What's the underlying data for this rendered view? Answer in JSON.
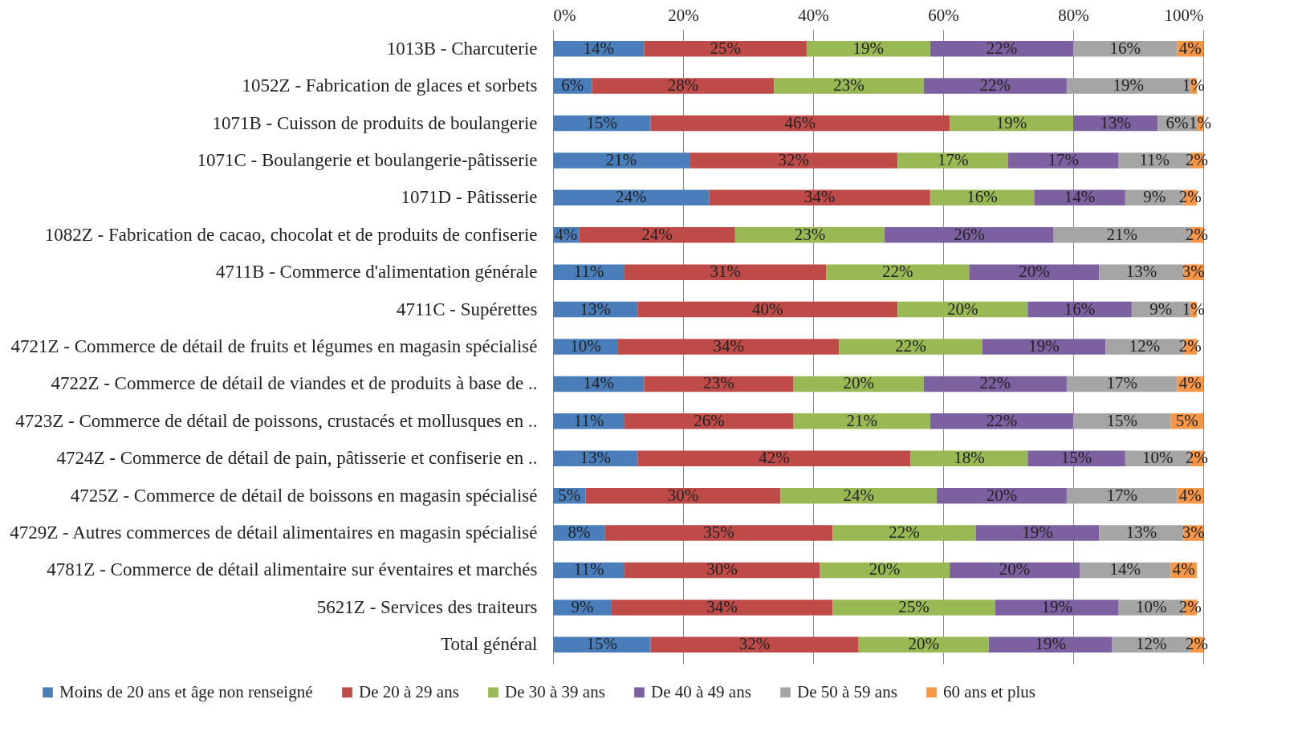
{
  "chart_data": {
    "type": "bar",
    "orientation": "horizontal",
    "stacked": true,
    "categories": [
      "1013B - Charcuterie",
      "1052Z - Fabrication de glaces et sorbets",
      "1071B - Cuisson de produits de boulangerie",
      "1071C - Boulangerie et boulangerie-pâtisserie",
      "1071D - Pâtisserie",
      "1082Z - Fabrication de cacao, chocolat et de produits de confiserie",
      "4711B - Commerce d'alimentation générale",
      "4711C - Supérettes",
      "4721Z - Commerce de détail de fruits et légumes en magasin spécialisé",
      "4722Z - Commerce de détail de viandes et de produits à base de ..",
      "4723Z - Commerce de détail de poissons, crustacés et mollusques en ..",
      "4724Z - Commerce de détail de pain, pâtisserie et confiserie en ..",
      "4725Z - Commerce de détail de boissons en magasin spécialisé",
      "4729Z - Autres commerces de détail alimentaires en magasin spécialisé",
      "4781Z - Commerce de détail alimentaire sur éventaires et marchés",
      "5621Z - Services des traiteurs",
      "Total général"
    ],
    "series": [
      {
        "name": "Moins de 20 ans et âge non renseigné",
        "color": "#4a7ebb",
        "values": [
          14,
          6,
          15,
          21,
          24,
          4,
          11,
          13,
          10,
          14,
          11,
          13,
          5,
          8,
          11,
          9,
          15
        ],
        "value_labels": [
          "14%",
          "6%",
          "15%",
          "21%",
          "24%",
          "4%",
          "11%",
          "13%",
          "10%",
          "14%",
          "11%",
          "13%",
          "5%",
          "8%",
          "11%",
          "9%",
          "15%"
        ]
      },
      {
        "name": "De 20 à 29 ans",
        "color": "#be4b48",
        "values": [
          25,
          28,
          46,
          32,
          34,
          24,
          31,
          40,
          34,
          23,
          26,
          42,
          30,
          35,
          30,
          34,
          32
        ],
        "value_labels": [
          "25%",
          "28%",
          "46%",
          "32%",
          "34%",
          "24%",
          "31%",
          "40%",
          "34%",
          "23%",
          "26%",
          "42%",
          "30%",
          "35%",
          "30%",
          "34%",
          "32%"
        ]
      },
      {
        "name": "De 30 à 39 ans",
        "color": "#98b954",
        "values": [
          19,
          23,
          19,
          17,
          16,
          23,
          22,
          20,
          22,
          20,
          21,
          18,
          24,
          22,
          20,
          25,
          20
        ],
        "value_labels": [
          "19%",
          "23%",
          "19%",
          "17%",
          "16%",
          "23%",
          "22%",
          "20%",
          "22%",
          "20%",
          "21%",
          "18%",
          "24%",
          "22%",
          "20%",
          "25%",
          "20%"
        ]
      },
      {
        "name": "De 40 à 49 ans",
        "color": "#7d60a0",
        "values": [
          22,
          22,
          13,
          17,
          14,
          26,
          20,
          16,
          19,
          22,
          22,
          15,
          20,
          19,
          20,
          19,
          19
        ],
        "value_labels": [
          "22%",
          "22%",
          "13%",
          "17%",
          "14%",
          "26%",
          "20%",
          "16%",
          "19%",
          "22%",
          "22%",
          "15%",
          "20%",
          "19%",
          "20%",
          "19%",
          "19%"
        ]
      },
      {
        "name": "De 50 à 59 ans",
        "color": "#a5a5a5",
        "values": [
          16,
          19,
          6,
          11,
          9,
          21,
          13,
          9,
          12,
          17,
          15,
          10,
          17,
          13,
          14,
          10,
          12
        ],
        "value_labels": [
          "16%",
          "19%",
          "6%",
          "11%",
          "9%",
          "21%",
          "13%",
          "9%",
          "12%",
          "17%",
          "15%",
          "10%",
          "17%",
          "13%",
          "14%",
          "10%",
          "12%"
        ]
      },
      {
        "name": "60 ans et plus",
        "color": "#f79646",
        "values": [
          4,
          1,
          1,
          2,
          2,
          2,
          3,
          1,
          2,
          4,
          5,
          2,
          4,
          3,
          4,
          2,
          2
        ],
        "value_labels": [
          "4%",
          "1%",
          "1%",
          "2%",
          "2%",
          "2%",
          "3%",
          "1%",
          "2%",
          "4%",
          "5%",
          "2%",
          "4%",
          "3%",
          "4%",
          "2%",
          "2%"
        ]
      }
    ],
    "xlim": [
      0,
      100
    ],
    "xticks": [
      {
        "value": 0,
        "label": "0%"
      },
      {
        "value": 20,
        "label": "20%"
      },
      {
        "value": 40,
        "label": "40%"
      },
      {
        "value": 60,
        "label": "60%"
      },
      {
        "value": 80,
        "label": "80%"
      },
      {
        "value": 100,
        "label": "100%"
      }
    ],
    "grid": "x",
    "legend": "bottom"
  }
}
